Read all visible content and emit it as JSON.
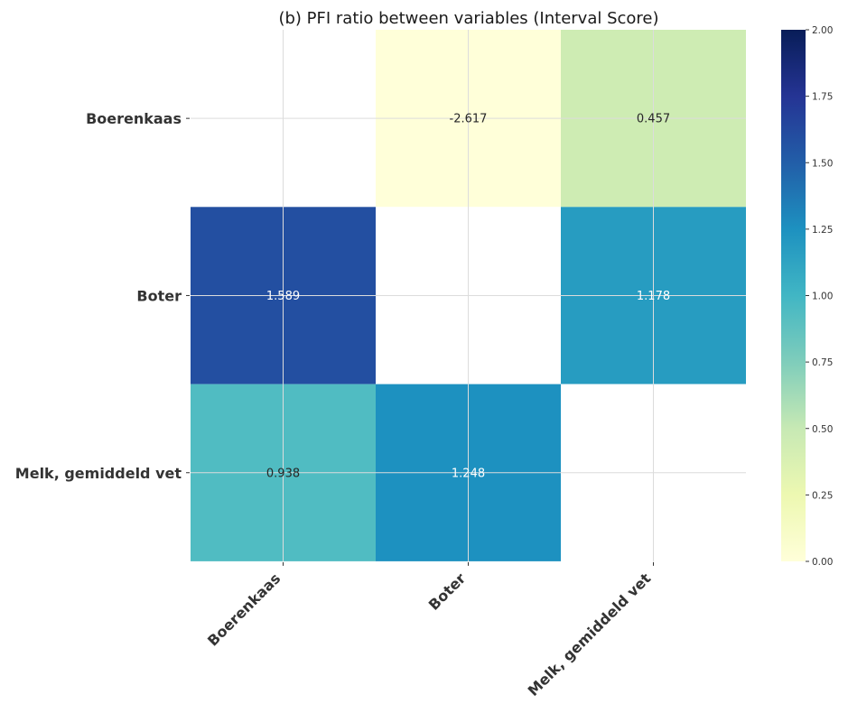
{
  "chart_data": {
    "type": "heatmap",
    "title": "(b) PFI ratio between variables (Interval Score)",
    "rows": [
      "Boerenkaas",
      "Boter",
      "Melk, gemiddeld vet"
    ],
    "columns": [
      "Boerenkaas",
      "Boter",
      "Melk, gemiddeld vet"
    ],
    "values": [
      [
        null,
        -2.617,
        0.457
      ],
      [
        1.589,
        null,
        1.178
      ],
      [
        0.938,
        1.248,
        null
      ]
    ],
    "labels": [
      [
        "",
        "-2.617",
        "0.457"
      ],
      [
        "1.589",
        "",
        "1.178"
      ],
      [
        "0.938",
        "1.248",
        ""
      ]
    ],
    "colorbar": {
      "min": 0.0,
      "max": 2.0,
      "ticks": [
        "0.00",
        "0.25",
        "0.50",
        "0.75",
        "1.00",
        "1.25",
        "1.50",
        "1.75",
        "2.00"
      ],
      "colormap": "YlGnBu"
    },
    "grid": true
  }
}
